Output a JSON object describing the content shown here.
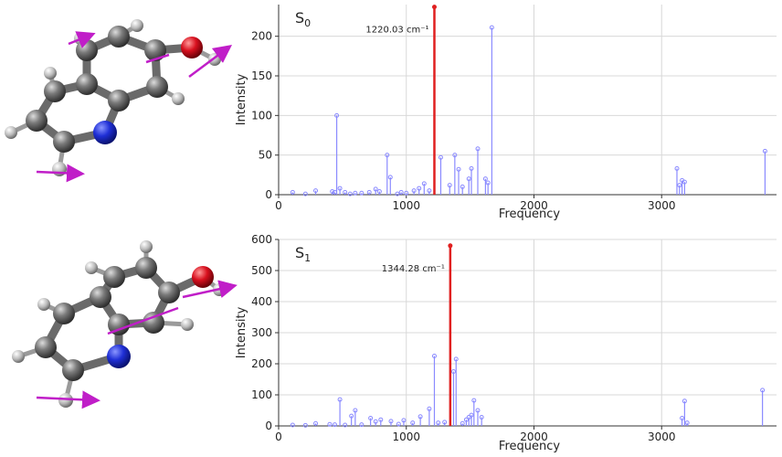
{
  "colors": {
    "stick": "#8a8aff",
    "highlight": "#e02020",
    "grid": "#d8d8d8",
    "axis": "#333333",
    "carbon": "#606060",
    "nitrogen": "#1f2fd6",
    "oxygen": "#d8101e",
    "arrow": "#c01ec8"
  },
  "chart_data": [
    {
      "type": "stem",
      "state_label": "S",
      "state_sub": "0",
      "xlabel": "Frequency",
      "ylabel": "Intensity",
      "xlim": [
        0,
        3900
      ],
      "ylim": [
        0,
        240
      ],
      "xticks": [
        0,
        1000,
        2000,
        3000
      ],
      "yticks": [
        0,
        50,
        100,
        150,
        200
      ],
      "grid": true,
      "highlight": {
        "x": 1220.03,
        "y": 237,
        "label": "1220.03 cm⁻¹"
      },
      "peaks": [
        [
          110,
          3
        ],
        [
          210,
          1
        ],
        [
          290,
          5
        ],
        [
          420,
          4
        ],
        [
          440,
          3
        ],
        [
          455,
          100
        ],
        [
          480,
          8
        ],
        [
          520,
          3
        ],
        [
          560,
          1
        ],
        [
          600,
          2
        ],
        [
          650,
          2
        ],
        [
          710,
          3
        ],
        [
          760,
          7
        ],
        [
          790,
          4
        ],
        [
          850,
          50
        ],
        [
          875,
          22
        ],
        [
          930,
          1
        ],
        [
          960,
          3
        ],
        [
          1000,
          2
        ],
        [
          1060,
          5
        ],
        [
          1100,
          8
        ],
        [
          1140,
          14
        ],
        [
          1180,
          5
        ],
        [
          1270,
          47
        ],
        [
          1340,
          12
        ],
        [
          1380,
          50
        ],
        [
          1410,
          32
        ],
        [
          1440,
          10
        ],
        [
          1490,
          20
        ],
        [
          1510,
          33
        ],
        [
          1560,
          58
        ],
        [
          1620,
          20
        ],
        [
          1640,
          15
        ],
        [
          1670,
          211
        ],
        [
          3120,
          33
        ],
        [
          3140,
          12
        ],
        [
          3160,
          18
        ],
        [
          3180,
          16
        ],
        [
          3810,
          55
        ]
      ]
    },
    {
      "type": "stem",
      "state_label": "S",
      "state_sub": "1",
      "xlabel": "Frequency",
      "ylabel": "Intensity",
      "xlim": [
        0,
        3900
      ],
      "ylim": [
        0,
        600
      ],
      "xticks": [
        0,
        1000,
        2000,
        3000
      ],
      "yticks": [
        0,
        100,
        200,
        300,
        400,
        500,
        600
      ],
      "grid": true,
      "highlight": {
        "x": 1344.28,
        "y": 580,
        "label": "1344.28 cm⁻¹"
      },
      "peaks": [
        [
          110,
          3
        ],
        [
          210,
          2
        ],
        [
          290,
          8
        ],
        [
          400,
          5
        ],
        [
          440,
          4
        ],
        [
          480,
          85
        ],
        [
          520,
          3
        ],
        [
          570,
          32
        ],
        [
          600,
          50
        ],
        [
          650,
          4
        ],
        [
          720,
          25
        ],
        [
          760,
          14
        ],
        [
          800,
          20
        ],
        [
          880,
          15
        ],
        [
          940,
          6
        ],
        [
          980,
          18
        ],
        [
          1050,
          10
        ],
        [
          1110,
          30
        ],
        [
          1180,
          55
        ],
        [
          1220,
          225
        ],
        [
          1250,
          10
        ],
        [
          1300,
          12
        ],
        [
          1370,
          175
        ],
        [
          1390,
          215
        ],
        [
          1440,
          8
        ],
        [
          1470,
          20
        ],
        [
          1490,
          28
        ],
        [
          1510,
          35
        ],
        [
          1530,
          82
        ],
        [
          1560,
          50
        ],
        [
          1590,
          28
        ],
        [
          3160,
          25
        ],
        [
          3180,
          80
        ],
        [
          3200,
          10
        ],
        [
          3790,
          115
        ]
      ]
    }
  ]
}
